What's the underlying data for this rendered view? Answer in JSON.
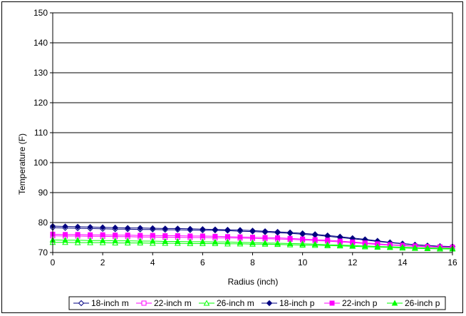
{
  "chart_data": {
    "type": "line",
    "title": "",
    "xlabel": "Radius (inch)",
    "ylabel": "Temperature (F)",
    "xlim": [
      0,
      16
    ],
    "ylim": [
      70,
      150
    ],
    "xticks": [
      0,
      2,
      4,
      6,
      8,
      10,
      12,
      14,
      16
    ],
    "yticks": [
      70,
      80,
      90,
      100,
      110,
      120,
      130,
      140,
      150
    ],
    "grid": "horizontal",
    "legend_position": "bottom",
    "x": [
      0,
      0.5,
      1,
      1.5,
      2,
      2.5,
      3,
      3.5,
      4,
      4.5,
      5,
      5.5,
      6,
      6.5,
      7,
      7.5,
      8,
      8.5,
      9,
      9.5,
      10,
      10.5,
      11,
      11.5,
      12,
      12.5,
      13,
      13.5,
      14,
      14.5,
      15,
      15.5,
      16
    ],
    "series": [
      {
        "name": "18-inch m",
        "color": "#000080",
        "marker": "diamond-open",
        "values": [
          78.3,
          78.2,
          78.1,
          78.0,
          77.9,
          77.8,
          77.8,
          77.7,
          77.7,
          77.6,
          77.6,
          77.5,
          77.4,
          77.4,
          77.3,
          77.1,
          77.0,
          76.8,
          76.6,
          76.4,
          76.1,
          75.8,
          75.4,
          75.0,
          74.6,
          74.2,
          73.7,
          73.3,
          72.9,
          72.6,
          72.3,
          72.1,
          72.0
        ]
      },
      {
        "name": "22-inch m",
        "color": "#ff00ff",
        "marker": "square-open",
        "values": [
          75.6,
          75.5,
          75.5,
          75.4,
          75.4,
          75.3,
          75.3,
          75.2,
          75.2,
          75.1,
          75.1,
          75.0,
          75.0,
          74.9,
          74.9,
          74.8,
          74.7,
          74.6,
          74.5,
          74.4,
          74.2,
          74.0,
          73.8,
          73.5,
          73.3,
          73.0,
          72.7,
          72.5,
          72.3,
          72.1,
          71.9,
          71.8,
          71.7
        ]
      },
      {
        "name": "26-inch m",
        "color": "#00ff00",
        "marker": "triangle-open",
        "values": [
          73.4,
          73.4,
          73.3,
          73.3,
          73.3,
          73.2,
          73.2,
          73.2,
          73.1,
          73.1,
          73.1,
          73.0,
          73.0,
          73.0,
          72.9,
          72.9,
          72.8,
          72.8,
          72.7,
          72.6,
          72.5,
          72.4,
          72.3,
          72.2,
          72.1,
          71.9,
          71.8,
          71.7,
          71.5,
          71.4,
          71.3,
          71.2,
          71.2
        ]
      },
      {
        "name": "18-inch p",
        "color": "#000080",
        "marker": "diamond",
        "values": [
          78.8,
          78.7,
          78.6,
          78.5,
          78.4,
          78.3,
          78.2,
          78.2,
          78.1,
          78.0,
          78.0,
          77.9,
          77.8,
          77.7,
          77.6,
          77.5,
          77.3,
          77.1,
          76.9,
          76.7,
          76.4,
          76.1,
          75.7,
          75.3,
          74.8,
          74.4,
          73.9,
          73.4,
          73.0,
          72.6,
          72.3,
          72.1,
          72.0
        ]
      },
      {
        "name": "22-inch p",
        "color": "#ff00ff",
        "marker": "square",
        "values": [
          76.1,
          76.0,
          76.0,
          75.9,
          75.9,
          75.8,
          75.8,
          75.7,
          75.7,
          75.6,
          75.6,
          75.5,
          75.5,
          75.4,
          75.3,
          75.2,
          75.1,
          75.0,
          74.9,
          74.7,
          74.5,
          74.3,
          74.1,
          73.8,
          73.5,
          73.2,
          72.9,
          72.6,
          72.4,
          72.2,
          72.0,
          71.9,
          71.8
        ]
      },
      {
        "name": "26-inch p",
        "color": "#00ff00",
        "marker": "triangle",
        "values": [
          74.2,
          74.1,
          74.1,
          74.0,
          74.0,
          73.9,
          73.9,
          73.8,
          73.8,
          73.7,
          73.7,
          73.6,
          73.6,
          73.5,
          73.5,
          73.4,
          73.3,
          73.2,
          73.1,
          73.0,
          72.9,
          72.8,
          72.6,
          72.5,
          72.3,
          72.2,
          72.0,
          71.9,
          71.8,
          71.6,
          71.5,
          71.5,
          71.4
        ]
      }
    ]
  }
}
